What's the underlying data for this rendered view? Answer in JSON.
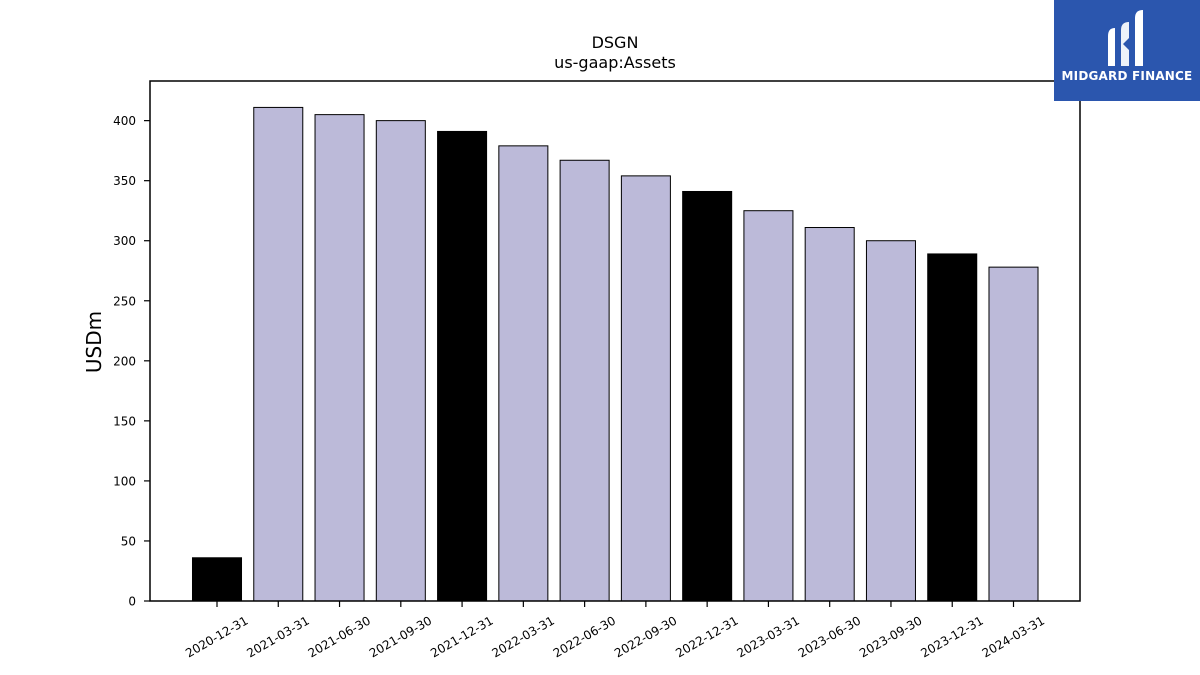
{
  "chart_data": {
    "type": "bar",
    "title": "DSGN",
    "subtitle": "us-gaap:Assets",
    "xlabel": "",
    "ylabel": "USDm",
    "ylim": [
      0,
      433
    ],
    "yticks": [
      0,
      50,
      100,
      150,
      200,
      250,
      300,
      350,
      400
    ],
    "grid": false,
    "categories": [
      "2020-12-31",
      "2021-03-31",
      "2021-06-30",
      "2021-09-30",
      "2021-12-31",
      "2022-03-31",
      "2022-06-30",
      "2022-09-30",
      "2022-12-31",
      "2023-03-31",
      "2023-06-30",
      "2023-09-30",
      "2023-12-31",
      "2024-03-31"
    ],
    "values": [
      36,
      411,
      405,
      400,
      391,
      379,
      367,
      354,
      341,
      325,
      311,
      300,
      289,
      278
    ],
    "bar_colors": [
      "#000000",
      "#bcbad9",
      "#bcbad9",
      "#bcbad9",
      "#000000",
      "#bcbad9",
      "#bcbad9",
      "#bcbad9",
      "#000000",
      "#bcbad9",
      "#bcbad9",
      "#bcbad9",
      "#000000",
      "#bcbad9"
    ]
  },
  "logo": {
    "text": "MIDGARD FINANCE",
    "background": "#2b56ae"
  }
}
